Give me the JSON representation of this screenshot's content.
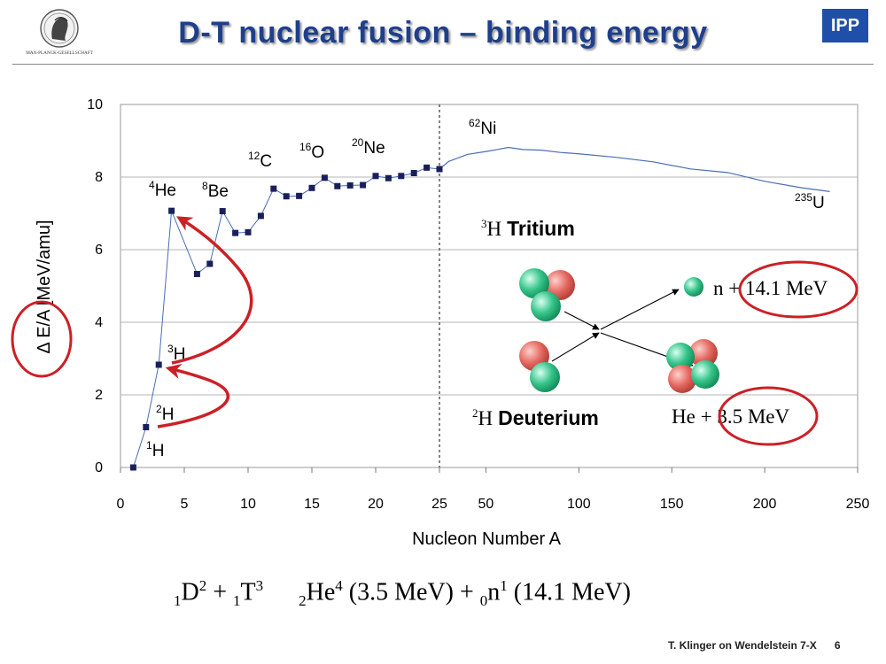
{
  "header": {
    "title": "D-T nuclear fusion – binding energy",
    "logo_left_caption": "MAX-PLANCK-GESELLSCHAFT",
    "logo_right": "IPP"
  },
  "chart_data": {
    "type": "line",
    "ylabel": "Δ E/A [MeV/amu]",
    "xlabel": "Nucleon Number A",
    "ylim": [
      0,
      10
    ],
    "yticks": [
      0,
      2,
      4,
      6,
      8,
      10
    ],
    "x_segments": [
      {
        "range": [
          0,
          25
        ],
        "ticks": [
          0,
          5,
          10,
          15,
          20,
          25
        ]
      },
      {
        "range": [
          25,
          250
        ],
        "ticks": [
          50,
          100,
          150,
          200,
          250
        ]
      }
    ],
    "grid": true,
    "series": [
      {
        "marker": "square",
        "x": [
          1,
          2,
          3,
          4,
          6,
          7,
          8,
          9,
          10,
          11,
          12,
          13,
          14,
          15,
          16,
          17,
          18,
          19,
          20,
          21,
          22,
          23,
          24,
          25
        ],
        "y": [
          0,
          1.11,
          2.83,
          7.07,
          5.33,
          5.61,
          7.06,
          6.46,
          6.48,
          6.93,
          7.68,
          7.47,
          7.48,
          7.7,
          7.98,
          7.75,
          7.77,
          7.78,
          8.03,
          7.97,
          8.03,
          8.11,
          8.26,
          8.22
        ]
      },
      {
        "marker": "none",
        "x": [
          25,
          30,
          40,
          50,
          56,
          62,
          70,
          80,
          90,
          100,
          120,
          140,
          160,
          180,
          200,
          220,
          235
        ],
        "y": [
          8.22,
          8.45,
          8.6,
          8.7,
          8.78,
          8.79,
          8.75,
          8.72,
          8.7,
          8.65,
          8.55,
          8.4,
          8.25,
          8.1,
          7.9,
          7.7,
          7.6
        ]
      }
    ],
    "point_labels": [
      {
        "mass": "1",
        "symbol": "H"
      },
      {
        "mass": "2",
        "symbol": "H"
      },
      {
        "mass": "3",
        "symbol": "H"
      },
      {
        "mass": "4",
        "symbol": "He"
      },
      {
        "mass": "8",
        "symbol": "Be"
      },
      {
        "mass": "12",
        "symbol": "C"
      },
      {
        "mass": "16",
        "symbol": "O"
      },
      {
        "mass": "20",
        "symbol": "Ne"
      },
      {
        "mass": "62",
        "symbol": "Ni"
      },
      {
        "mass": "235",
        "symbol": "U"
      }
    ],
    "annotations": {
      "tritium": {
        "mass": "3",
        "symbol": "H",
        "name": "Tritium"
      },
      "deuterium": {
        "mass": "2",
        "symbol": "H",
        "name": "Deuterium"
      },
      "neutron_out": {
        "particle": "n",
        "energy": "14.1 MeV"
      },
      "helium_out": {
        "particle": "He",
        "energy": "3.5 MeV"
      }
    }
  },
  "equation": {
    "d_pre": "1",
    "d": "D",
    "d_post": "2",
    "plus1": " + ",
    "t_pre": "1",
    "t": "T",
    "t_post": "3",
    "he_pre": "2",
    "he": "He",
    "he_post": "4",
    "he_energy": " (3.5 MeV) + ",
    "n_pre": "0",
    "n": "n",
    "n_post": "1",
    "n_energy": " (14.1 MeV)"
  },
  "footer": {
    "credit": "T. Klinger on Wendelstein 7-X",
    "page": "6"
  },
  "colors": {
    "title": "#1e3f8c",
    "curve": "#4a6db5",
    "marker": "#1a1f5c",
    "highlight": "#cc2026",
    "proton": "#e05a5a",
    "neutron": "#2fb37a"
  }
}
